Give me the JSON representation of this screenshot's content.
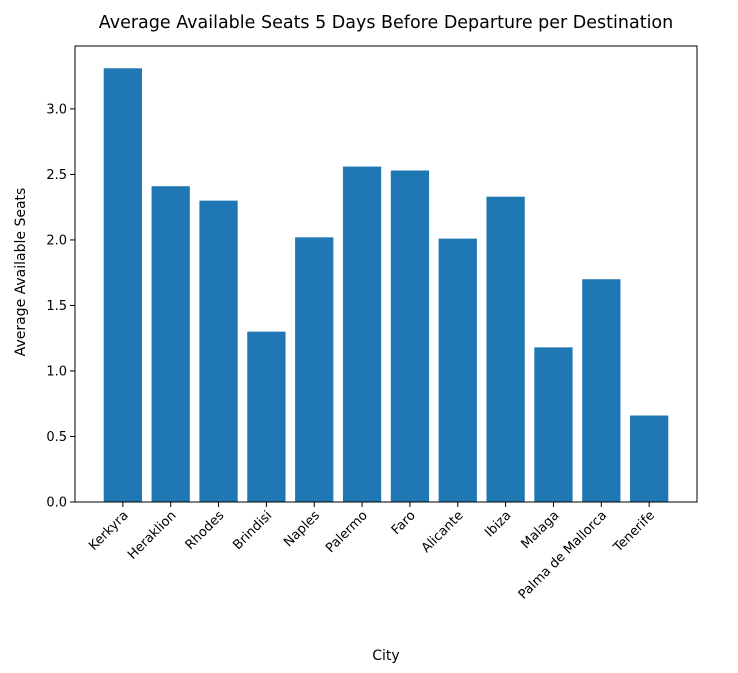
{
  "chart_data": {
    "type": "bar",
    "title": "Average Available Seats 5 Days Before Departure per Destination",
    "xlabel": "City",
    "ylabel": "Average Available Seats",
    "categories": [
      "Kerkyra",
      "Heraklion",
      "Rhodes",
      "Brindisi",
      "Naples",
      "Palermo",
      "Faro",
      "Alicante",
      "Ibiza",
      "Malaga",
      "Palma de Mallorca",
      "Tenerife"
    ],
    "values": [
      3.31,
      2.41,
      2.3,
      1.3,
      2.02,
      2.56,
      2.53,
      2.01,
      2.33,
      1.18,
      1.7,
      0.66
    ],
    "ylim": [
      0,
      3.48
    ],
    "yticks": [
      0.0,
      0.5,
      1.0,
      1.5,
      2.0,
      2.5,
      3.0
    ],
    "ytick_labels": [
      "0.0",
      "0.5",
      "1.0",
      "1.5",
      "2.0",
      "2.5",
      "3.0"
    ],
    "grid": false,
    "bar_color": "#1f77b4",
    "axis_color": "#000000"
  }
}
